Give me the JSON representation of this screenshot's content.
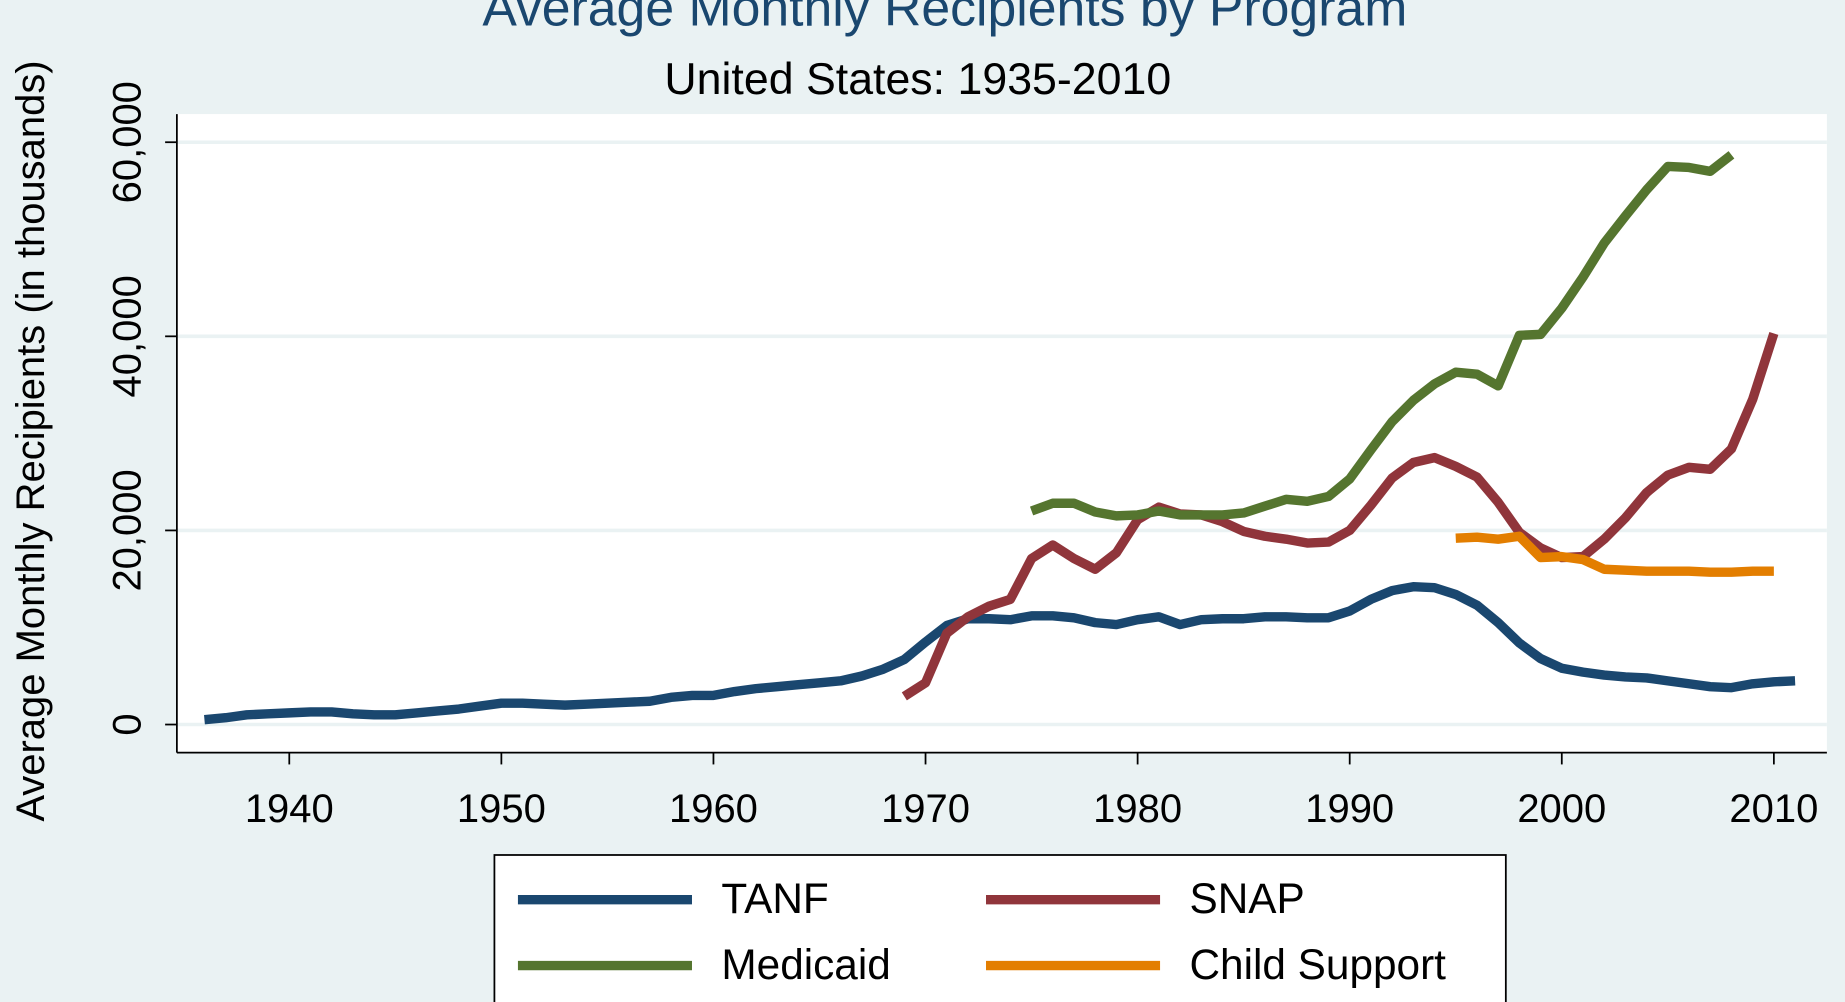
{
  "chart_data": {
    "type": "line",
    "title": "Average Monthly Recipients by Program",
    "subtitle": "United States: 1935-2010",
    "y_label": "Average Monthly Recipients (in thousands)",
    "x": [
      1936,
      1937,
      1938,
      1939,
      1940,
      1941,
      1942,
      1943,
      1944,
      1945,
      1946,
      1947,
      1948,
      1949,
      1950,
      1951,
      1952,
      1953,
      1954,
      1955,
      1956,
      1957,
      1958,
      1959,
      1960,
      1961,
      1962,
      1963,
      1964,
      1965,
      1966,
      1967,
      1968,
      1969,
      1970,
      1971,
      1972,
      1973,
      1974,
      1975,
      1976,
      1977,
      1978,
      1979,
      1980,
      1981,
      1982,
      1983,
      1984,
      1985,
      1986,
      1987,
      1988,
      1989,
      1990,
      1991,
      1992,
      1993,
      1994,
      1995,
      1996,
      1997,
      1998,
      1999,
      2000,
      2001,
      2002,
      2003,
      2004,
      2005,
      2006,
      2007,
      2008,
      2009,
      2010,
      2011
    ],
    "series": [
      {
        "name": "TANF",
        "color": "#1a476f",
        "values": [
          500,
          700,
          1000,
          1100,
          1200,
          1300,
          1300,
          1100,
          1000,
          1000,
          1200,
          1400,
          1600,
          1900,
          2200,
          2200,
          2100,
          2000,
          2100,
          2200,
          2300,
          2400,
          2800,
          3000,
          3000,
          3400,
          3700,
          3900,
          4100,
          4300,
          4500,
          5000,
          5700,
          6700,
          8500,
          10200,
          10900,
          10900,
          10800,
          11200,
          11200,
          11000,
          10500,
          10300,
          10800,
          11100,
          10300,
          10800,
          10900,
          10900,
          11100,
          11100,
          11000,
          11000,
          11700,
          12900,
          13800,
          14200,
          14100,
          13400,
          12300,
          10500,
          8400,
          6800,
          5800,
          5400,
          5100,
          4900,
          4800,
          4500,
          4200,
          3900,
          3800,
          4200,
          4400,
          4500
        ]
      },
      {
        "name": "SNAP",
        "color": "#90353b",
        "values": [
          null,
          null,
          null,
          null,
          null,
          null,
          null,
          null,
          null,
          null,
          null,
          null,
          null,
          null,
          null,
          null,
          null,
          null,
          null,
          null,
          null,
          null,
          null,
          null,
          null,
          null,
          null,
          null,
          null,
          null,
          null,
          null,
          null,
          2900,
          4300,
          9400,
          11100,
          12200,
          12900,
          17100,
          18500,
          17100,
          16000,
          17700,
          21100,
          22400,
          21700,
          21600,
          20900,
          19900,
          19400,
          19100,
          18700,
          18800,
          20000,
          22600,
          25400,
          27000,
          27500,
          26600,
          25500,
          22900,
          19800,
          18200,
          17200,
          17300,
          19100,
          21300,
          23900,
          25700,
          26500,
          26300,
          28400,
          33500,
          40300,
          null
        ]
      },
      {
        "name": "Medicaid",
        "color": "#55752f",
        "values": [
          null,
          null,
          null,
          null,
          null,
          null,
          null,
          null,
          null,
          null,
          null,
          null,
          null,
          null,
          null,
          null,
          null,
          null,
          null,
          null,
          null,
          null,
          null,
          null,
          null,
          null,
          null,
          null,
          null,
          null,
          null,
          null,
          null,
          null,
          null,
          null,
          null,
          null,
          null,
          22000,
          22800,
          22800,
          21900,
          21500,
          21600,
          22000,
          21600,
          21600,
          21600,
          21800,
          22500,
          23200,
          23000,
          23500,
          25300,
          28300,
          31200,
          33400,
          35100,
          36300,
          36100,
          34900,
          40100,
          40200,
          42900,
          46100,
          49600,
          52400,
          55100,
          57500,
          57400,
          57000,
          58700,
          null,
          null,
          null
        ]
      },
      {
        "name": "Child Support",
        "color": "#e37e00",
        "values": [
          null,
          null,
          null,
          null,
          null,
          null,
          null,
          null,
          null,
          null,
          null,
          null,
          null,
          null,
          null,
          null,
          null,
          null,
          null,
          null,
          null,
          null,
          null,
          null,
          null,
          null,
          null,
          null,
          null,
          null,
          null,
          null,
          null,
          null,
          null,
          null,
          null,
          null,
          null,
          null,
          null,
          null,
          null,
          null,
          null,
          null,
          null,
          null,
          null,
          null,
          null,
          null,
          null,
          null,
          null,
          null,
          null,
          null,
          null,
          19200,
          19300,
          19100,
          19400,
          17200,
          17300,
          17000,
          16000,
          15900,
          15800,
          15800,
          15800,
          15700,
          15700,
          15800,
          15800,
          null
        ]
      }
    ],
    "xlim": [
      1934.7,
      2012.5
    ],
    "xticks": [
      1940,
      1950,
      1960,
      1970,
      1980,
      1990,
      2000,
      2010
    ],
    "ylim": [
      -2900,
      62900
    ],
    "yticks": [
      0,
      {
        "value": 20000,
        "label": "20,000"
      },
      {
        "value": 40000,
        "label": "40,000"
      },
      {
        "value": 60000,
        "label": "60,000"
      }
    ],
    "grid": true,
    "legend": "bottom"
  }
}
